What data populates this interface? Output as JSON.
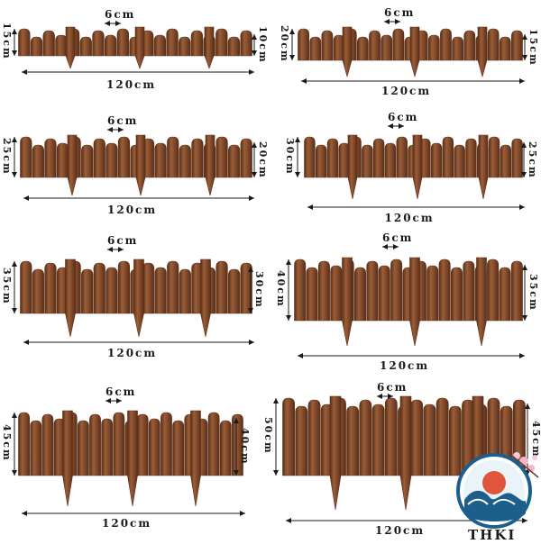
{
  "panels": [
    {
      "width": "120cm",
      "spacing": "6cm",
      "left_height": "15cm",
      "right_height": "10cm"
    },
    {
      "width": "120cm",
      "spacing": "6cm",
      "left_height": "20cm",
      "right_height": "15cm"
    },
    {
      "width": "120cm",
      "spacing": "6cm",
      "left_height": "25cm",
      "right_height": "20cm"
    },
    {
      "width": "120cm",
      "spacing": "6cm",
      "left_height": "30cm",
      "right_height": "25cm"
    },
    {
      "width": "120cm",
      "spacing": "6cm",
      "left_height": "35cm",
      "right_height": "30cm"
    },
    {
      "width": "120cm",
      "spacing": "6cm",
      "left_height": "40cm",
      "right_height": "35cm"
    },
    {
      "width": "120cm",
      "spacing": "6cm",
      "left_height": "45cm",
      "right_height": "40cm"
    },
    {
      "width": "120cm",
      "spacing": "6cm",
      "left_height": "50cm",
      "right_height": "45cm"
    }
  ],
  "watermark": "THKI",
  "colors": {
    "wood": "#7a4528",
    "wood_dark": "#5a2e17",
    "wood_light": "#9a5e38",
    "ink": "#1a1a1a"
  }
}
